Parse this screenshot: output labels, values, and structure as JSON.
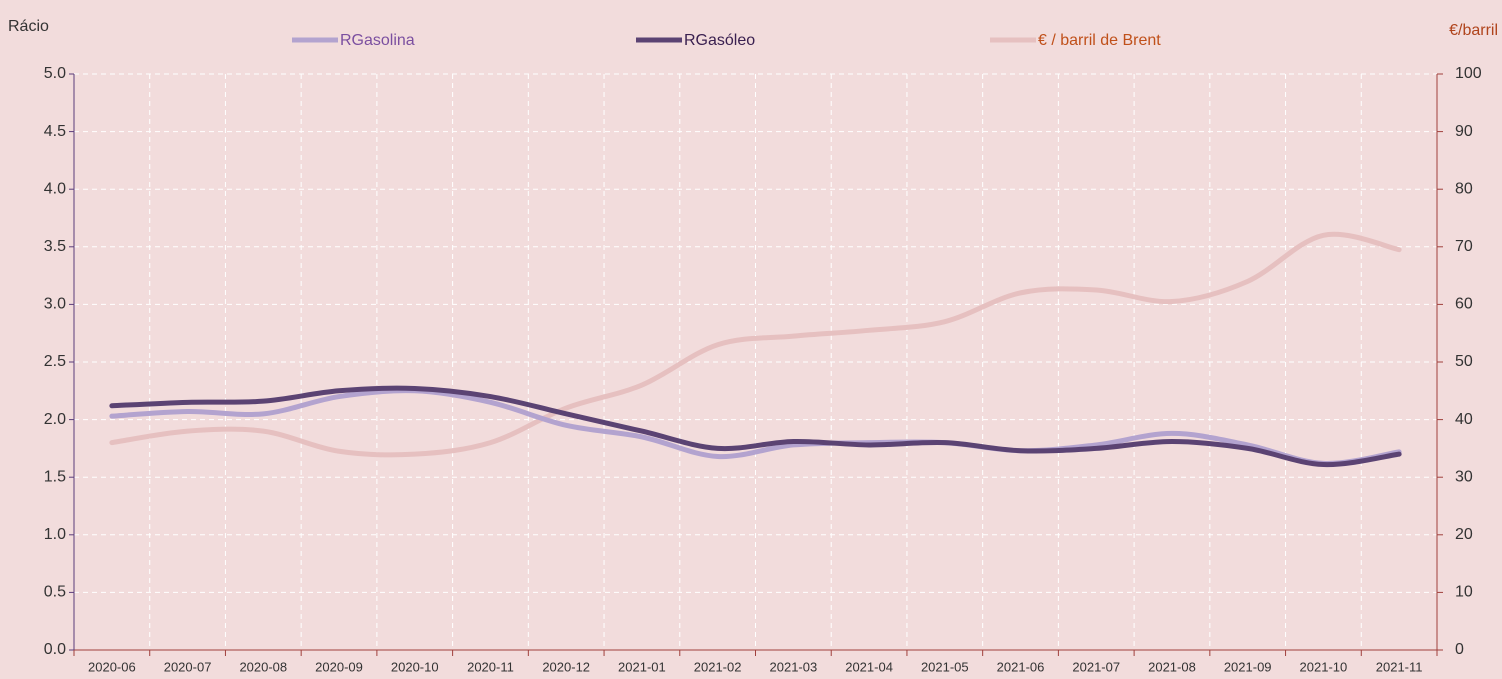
{
  "chart_data": {
    "type": "line",
    "y_label": "Rácio",
    "y2_label": "€/barril",
    "categories": [
      "2020-06",
      "2020-07",
      "2020-08",
      "2020-09",
      "2020-10",
      "2020-11",
      "2020-12",
      "2021-01",
      "2021-02",
      "2021-03",
      "2021-04",
      "2021-05",
      "2021-06",
      "2021-07",
      "2021-08",
      "2021-09",
      "2021-10",
      "2021-11"
    ],
    "series": [
      {
        "name": "RGasolina",
        "color": "#b3a3cf",
        "values": [
          2.03,
          2.07,
          2.05,
          2.2,
          2.25,
          2.15,
          1.95,
          1.85,
          1.68,
          1.78,
          1.8,
          1.8,
          1.73,
          1.78,
          1.88,
          1.78,
          1.62,
          1.72
        ]
      },
      {
        "name": "RGasóleo",
        "color": "#5b4373",
        "values": [
          2.12,
          2.15,
          2.16,
          2.25,
          2.27,
          2.2,
          2.05,
          1.9,
          1.75,
          1.81,
          1.78,
          1.8,
          1.73,
          1.75,
          1.81,
          1.75,
          1.61,
          1.7
        ]
      },
      {
        "name": "€ / barril de Brent",
        "color": "#e6c0c0",
        "axis": "y2",
        "values": [
          36,
          38,
          38,
          34.5,
          34,
          36,
          42,
          46,
          53,
          54.5,
          55.5,
          57,
          62,
          62.5,
          60.5,
          64,
          72,
          69.5
        ]
      }
    ],
    "ylim": [
      0,
      5
    ],
    "yticks": [
      {
        "value": 0,
        "label": "0.0"
      },
      {
        "value": 0.5,
        "label": "0.5"
      },
      {
        "value": 1,
        "label": "1.0"
      },
      {
        "value": 1.5,
        "label": "1.5"
      },
      {
        "value": 2,
        "label": "2.0"
      },
      {
        "value": 2.5,
        "label": "2.5"
      },
      {
        "value": 3,
        "label": "3.0"
      },
      {
        "value": 3.5,
        "label": "3.5"
      },
      {
        "value": 4,
        "label": "4.0"
      },
      {
        "value": 4.5,
        "label": "4.5"
      },
      {
        "value": 5,
        "label": "5.0"
      }
    ],
    "y2lim": [
      0,
      100
    ],
    "y2ticks": [
      0,
      10,
      20,
      30,
      40,
      50,
      60,
      70,
      80,
      90,
      100
    ],
    "grid": true,
    "legend": "top"
  }
}
